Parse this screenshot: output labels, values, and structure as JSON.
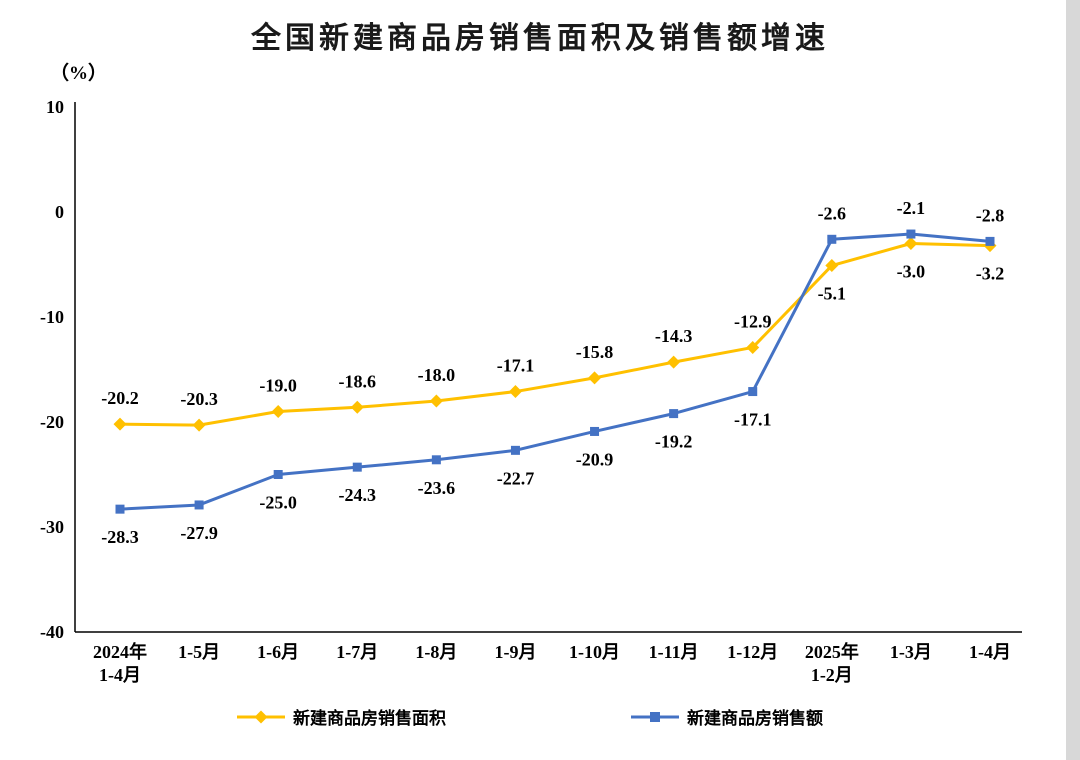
{
  "chart_data": {
    "type": "line",
    "title": "全国新建商品房销售面积及销售额增速",
    "ylabel": "（%）",
    "xlabel": "",
    "ylim": [
      -40,
      10
    ],
    "yticks": [
      10,
      0,
      -10,
      -20,
      -30,
      -40
    ],
    "grid": false,
    "legend_position": "bottom",
    "categories": [
      "2024年\n1-4月",
      "1-5月",
      "1-6月",
      "1-7月",
      "1-8月",
      "1-9月",
      "1-10月",
      "1-11月",
      "1-12月",
      "2025年\n1-2月",
      "1-3月",
      "1-4月"
    ],
    "series": [
      {
        "id": "sales-area",
        "name": "新建商品房销售面积",
        "color": "#FFC000",
        "marker": "diamond",
        "values": [
          -20.2,
          -20.3,
          -19.0,
          -18.6,
          -18.0,
          -17.1,
          -15.8,
          -14.3,
          -12.9,
          -5.1,
          -3.0,
          -3.2
        ],
        "label_side": [
          "above",
          "above",
          "above",
          "above",
          "above",
          "above",
          "above",
          "above",
          "above",
          "below",
          "below",
          "below"
        ]
      },
      {
        "id": "sales-amount",
        "name": "新建商品房销售额",
        "color": "#4472C4",
        "marker": "square",
        "values": [
          -28.3,
          -27.9,
          -25.0,
          -24.3,
          -23.6,
          -22.7,
          -20.9,
          -19.2,
          -17.1,
          -2.6,
          -2.1,
          -2.8
        ],
        "label_side": [
          "below",
          "below",
          "below",
          "below",
          "below",
          "below",
          "below",
          "below",
          "below",
          "above",
          "above",
          "above"
        ]
      }
    ]
  }
}
